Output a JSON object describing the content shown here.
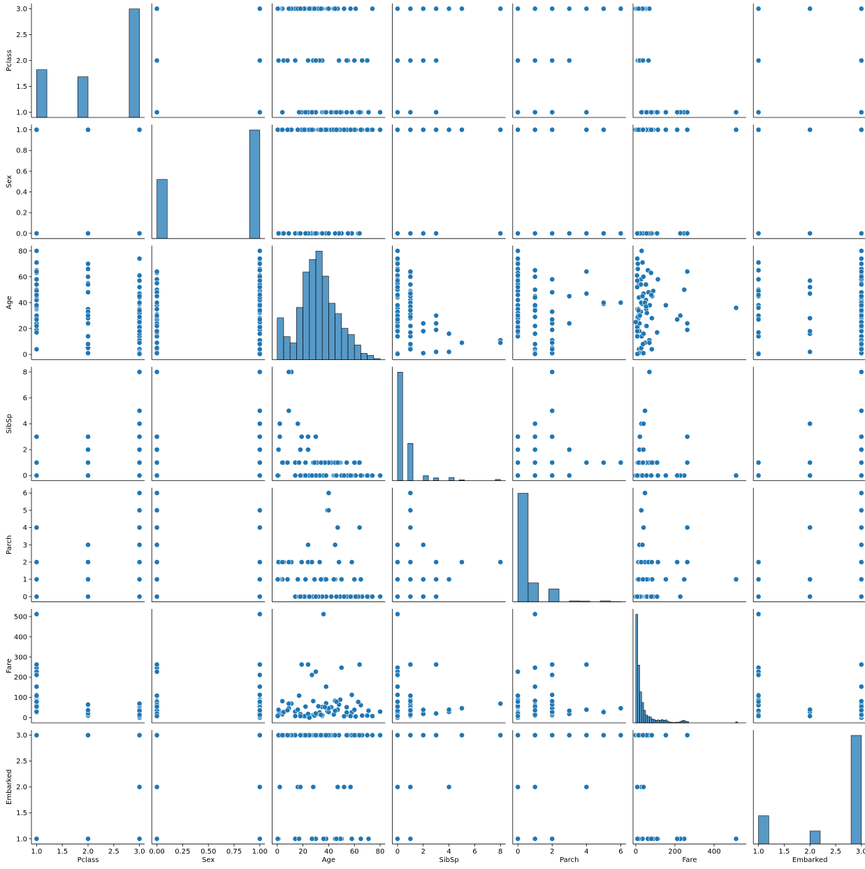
{
  "chart_data": {
    "type": "pairplot",
    "color": "#1f77b4",
    "variables": [
      {
        "name": "Pclass",
        "xlim": [
          0.9,
          3.1
        ],
        "ylim": [
          0.9,
          3.1
        ],
        "xticks": [
          {
            "value": 1,
            "label": "1.0"
          },
          {
            "value": 1.5,
            "label": "1.5"
          },
          {
            "value": 2,
            "label": "2.0"
          },
          {
            "value": 2.5,
            "label": "2.5"
          },
          {
            "value": 3,
            "label": "3.0"
          }
        ],
        "yticks": [
          {
            "value": 1,
            "label": "1.0"
          },
          {
            "value": 1.5,
            "label": "1.5"
          },
          {
            "value": 2,
            "label": "2.0"
          },
          {
            "value": 2.5,
            "label": "2.5"
          },
          {
            "value": 3,
            "label": "3.0"
          }
        ],
        "hist": {
          "bins": [
            1,
            1.2,
            1.4,
            1.6,
            1.8,
            2,
            2.2,
            2.4,
            2.6,
            2.8,
            3
          ],
          "counts": [
            216,
            0,
            0,
            0,
            184,
            0,
            0,
            0,
            0,
            491
          ]
        }
      },
      {
        "name": "Sex",
        "xlim": [
          -0.05,
          1.05
        ],
        "ylim": [
          -0.05,
          1.05
        ],
        "xticks": [
          {
            "value": 0,
            "label": "0.00"
          },
          {
            "value": 0.25,
            "label": "0.25"
          },
          {
            "value": 0.5,
            "label": "0.50"
          },
          {
            "value": 0.75,
            "label": "0.75"
          },
          {
            "value": 1,
            "label": "1.00"
          }
        ],
        "yticks": [
          {
            "value": 0,
            "label": "0.0"
          },
          0.2,
          0.4,
          0.6,
          0.8,
          {
            "value": 1,
            "label": "1.0"
          }
        ],
        "hist": {
          "bins": [
            0,
            0.1,
            0.2,
            0.3,
            0.4,
            0.5,
            0.6,
            0.7,
            0.8,
            0.9,
            1
          ],
          "counts": [
            314,
            0,
            0,
            0,
            0,
            0,
            0,
            0,
            0,
            577
          ]
        }
      },
      {
        "name": "Age",
        "xlim": [
          -4,
          84
        ],
        "ylim": [
          -4,
          84
        ],
        "xticks": [
          0,
          20,
          40,
          60,
          80
        ],
        "yticks": [
          0,
          20,
          40,
          60,
          80
        ],
        "hist": {
          "bins": [
            0,
            5,
            10,
            15,
            20,
            25,
            30,
            35,
            40,
            45,
            50,
            55,
            60,
            65,
            70,
            75,
            80
          ],
          "counts": [
            40,
            22,
            16,
            50,
            84,
            96,
            104,
            80,
            54,
            44,
            30,
            24,
            14,
            6,
            4,
            1
          ]
        }
      },
      {
        "name": "SibSp",
        "xlim": [
          -0.4,
          8.4
        ],
        "ylim": [
          -0.4,
          8.4
        ],
        "xticks": [
          0,
          2,
          4,
          6,
          8
        ],
        "yticks": [
          0,
          2,
          4,
          6,
          8
        ],
        "hist": {
          "bins": [
            0,
            0.4,
            0.8,
            1.2,
            1.6,
            2,
            2.4,
            2.8,
            3.2,
            3.6,
            4,
            4.4,
            4.8,
            5.2,
            5.6,
            6,
            6.4,
            6.8,
            7.2,
            7.6,
            8
          ],
          "counts": [
            608,
            0,
            209,
            0,
            0,
            28,
            0,
            16,
            0,
            0,
            18,
            0,
            5,
            0,
            0,
            0,
            0,
            0,
            0,
            7
          ]
        }
      },
      {
        "name": "Parch",
        "xlim": [
          -0.3,
          6.3
        ],
        "ylim": [
          -0.3,
          6.3
        ],
        "xticks": [
          0,
          2,
          4,
          6
        ],
        "yticks": [
          0,
          1,
          2,
          3,
          4,
          5,
          6
        ],
        "hist": {
          "bins": [
            0,
            0.6,
            1.2,
            1.8,
            2.4,
            3,
            3.6,
            4.2,
            4.8,
            5.4,
            6
          ],
          "counts": [
            678,
            118,
            0,
            80,
            0,
            5,
            4,
            0,
            5,
            1
          ]
        }
      },
      {
        "name": "Fare",
        "xlim": [
          -14,
          564
        ],
        "ylim": [
          -25.6,
          537.9
        ],
        "xticks": [
          0,
          200,
          400
        ],
        "yticks": [
          0,
          100,
          200,
          300,
          400,
          500
        ],
        "hist": {
          "bins": [
            0,
            10,
            20,
            30,
            40,
            50,
            60,
            70,
            80,
            90,
            100,
            110,
            120,
            130,
            140,
            150,
            160,
            170,
            180,
            190,
            200,
            210,
            220,
            230,
            240,
            250,
            260,
            270,
            280,
            290,
            300,
            310,
            320,
            330,
            340,
            350,
            360,
            370,
            380,
            390,
            400,
            410,
            420,
            430,
            440,
            450,
            460,
            470,
            480,
            490,
            500,
            510,
            520
          ],
          "counts": [
            336,
            179,
            96,
            63,
            39,
            24,
            20,
            18,
            12,
            10,
            8,
            9,
            8,
            10,
            8,
            9,
            5,
            2,
            2,
            1,
            2,
            2,
            3,
            6,
            8,
            5,
            4,
            0,
            0,
            0,
            0,
            0,
            0,
            0,
            0,
            0,
            0,
            0,
            0,
            0,
            0,
            0,
            0,
            0,
            0,
            0,
            0,
            0,
            0,
            0,
            0,
            3
          ]
        }
      },
      {
        "name": "Embarked",
        "xlim": [
          0.9,
          3.1
        ],
        "ylim": [
          0.9,
          3.1
        ],
        "xticks": [
          {
            "value": 1,
            "label": "1.0"
          },
          {
            "value": 1.5,
            "label": "1.5"
          },
          {
            "value": 2,
            "label": "2.0"
          },
          {
            "value": 2.5,
            "label": "2.5"
          },
          {
            "value": 3,
            "label": "3.0"
          }
        ],
        "yticks": [
          {
            "value": 1,
            "label": "1.0"
          },
          {
            "value": 1.5,
            "label": "1.5"
          },
          {
            "value": 2,
            "label": "2.0"
          },
          {
            "value": 2.5,
            "label": "2.5"
          },
          {
            "value": 3,
            "label": "3.0"
          }
        ],
        "hist": {
          "bins": [
            1,
            1.2,
            1.4,
            1.6,
            1.8,
            2,
            2.2,
            2.4,
            2.6,
            2.8,
            3
          ],
          "counts": [
            168,
            0,
            0,
            0,
            0,
            77,
            0,
            0,
            0,
            646
          ]
        }
      }
    ],
    "rows": [
      [
        3,
        1,
        22,
        1,
        0,
        7.25,
        3
      ],
      [
        1,
        0,
        38,
        1,
        0,
        71.3,
        1
      ],
      [
        3,
        0,
        26,
        0,
        0,
        7.9,
        3
      ],
      [
        1,
        0,
        35,
        1,
        0,
        53.1,
        3
      ],
      [
        3,
        1,
        35,
        0,
        0,
        8.05,
        3
      ],
      [
        3,
        1,
        28,
        0,
        0,
        8.5,
        2
      ],
      [
        1,
        1,
        54,
        0,
        0,
        51.9,
        3
      ],
      [
        3,
        1,
        2,
        3,
        1,
        21.1,
        3
      ],
      [
        3,
        0,
        27,
        0,
        2,
        11.1,
        3
      ],
      [
        2,
        0,
        14,
        1,
        0,
        30.1,
        1
      ],
      [
        3,
        0,
        4,
        1,
        1,
        16.7,
        3
      ],
      [
        1,
        0,
        58,
        0,
        0,
        26.6,
        3
      ],
      [
        3,
        1,
        20,
        0,
        0,
        8.05,
        3
      ],
      [
        3,
        1,
        39,
        1,
        5,
        31.3,
        3
      ],
      [
        3,
        0,
        14,
        0,
        0,
        7.85,
        3
      ],
      [
        2,
        0,
        55,
        0,
        0,
        16,
        3
      ],
      [
        3,
        1,
        2,
        4,
        1,
        29.1,
        2
      ],
      [
        2,
        1,
        35,
        0,
        0,
        13,
        3
      ],
      [
        3,
        0,
        31,
        1,
        0,
        18,
        3
      ],
      [
        1,
        1,
        19,
        3,
        2,
        263,
        3
      ],
      [
        2,
        1,
        66,
        0,
        0,
        10.5,
        3
      ],
      [
        1,
        1,
        28,
        1,
        0,
        82.2,
        1
      ],
      [
        1,
        1,
        42,
        1,
        0,
        52,
        3
      ],
      [
        3,
        1,
        21,
        0,
        0,
        8.05,
        3
      ],
      [
        3,
        0,
        18,
        2,
        0,
        18,
        3
      ],
      [
        3,
        0,
        40,
        1,
        5,
        27.9,
        3
      ],
      [
        1,
        0,
        45,
        1,
        1,
        83.5,
        1
      ],
      [
        3,
        1,
        9,
        5,
        2,
        46.9,
        3
      ],
      [
        1,
        1,
        65,
        0,
        1,
        61.98,
        1
      ],
      [
        2,
        1,
        28,
        0,
        0,
        13,
        3
      ],
      [
        1,
        0,
        50,
        0,
        1,
        247.5,
        1
      ],
      [
        3,
        1,
        32,
        0,
        0,
        56.5,
        3
      ],
      [
        1,
        1,
        36,
        0,
        1,
        512.3,
        1
      ],
      [
        3,
        1,
        16,
        4,
        1,
        39.7,
        2
      ],
      [
        1,
        0,
        24,
        3,
        2,
        263,
        3
      ],
      [
        3,
        1,
        11,
        8,
        2,
        69.55,
        3
      ],
      [
        3,
        0,
        9,
        8,
        2,
        69.55,
        3
      ],
      [
        3,
        0,
        40,
        1,
        6,
        46.9,
        3
      ],
      [
        3,
        1,
        44,
        0,
        1,
        16.1,
        3
      ],
      [
        1,
        1,
        71,
        0,
        0,
        34.65,
        1
      ],
      [
        3,
        1,
        74,
        0,
        0,
        7.78,
        3
      ],
      [
        1,
        1,
        80,
        0,
        0,
        30,
        3
      ],
      [
        2,
        1,
        70,
        0,
        0,
        10.5,
        3
      ],
      [
        1,
        0,
        63,
        1,
        0,
        77.9,
        3
      ],
      [
        2,
        0,
        24,
        2,
        3,
        18.75,
        3
      ],
      [
        3,
        0,
        1,
        0,
        2,
        15.7,
        1
      ],
      [
        2,
        1,
        1,
        2,
        1,
        39,
        3
      ],
      [
        3,
        1,
        0.4,
        0,
        1,
        8.5,
        1
      ],
      [
        1,
        1,
        49,
        1,
        0,
        89.1,
        1
      ],
      [
        2,
        1,
        33,
        0,
        2,
        26,
        3
      ],
      [
        3,
        1,
        61,
        0,
        0,
        6.2,
        3
      ],
      [
        1,
        0,
        30,
        0,
        0,
        227.5,
        1
      ],
      [
        2,
        0,
        48,
        1,
        2,
        65,
        3
      ],
      [
        3,
        1,
        25,
        0,
        0,
        0,
        3
      ],
      [
        1,
        1,
        37,
        1,
        1,
        52.5,
        3
      ],
      [
        2,
        0,
        5,
        1,
        2,
        27.75,
        3
      ],
      [
        3,
        1,
        47,
        1,
        4,
        39.7,
        2
      ],
      [
        1,
        0,
        64,
        1,
        4,
        263,
        3
      ],
      [
        3,
        0,
        29,
        1,
        1,
        10.5,
        3
      ],
      [
        1,
        1,
        58,
        0,
        2,
        113,
        1
      ],
      [
        2,
        1,
        54,
        1,
        0,
        26,
        3
      ],
      [
        3,
        0,
        45,
        0,
        3,
        34.4,
        3
      ],
      [
        1,
        0,
        17,
        1,
        0,
        108.9,
        1
      ],
      [
        2,
        0,
        30,
        3,
        0,
        21,
        3
      ],
      [
        1,
        1,
        4,
        1,
        2,
        81.9,
        3
      ],
      [
        3,
        1,
        52,
        0,
        0,
        7.2,
        2
      ],
      [
        1,
        1,
        38,
        0,
        1,
        153.5,
        3
      ],
      [
        3,
        0,
        18,
        0,
        0,
        7.75,
        2
      ],
      [
        2,
        1,
        60,
        1,
        1,
        39,
        3
      ],
      [
        1,
        0,
        22,
        0,
        1,
        55,
        3
      ],
      [
        3,
        1,
        57,
        0,
        0,
        7.75,
        2
      ],
      [
        1,
        1,
        46,
        0,
        0,
        79.2,
        1
      ],
      [
        3,
        1,
        34,
        1,
        1,
        14.4,
        3
      ],
      [
        2,
        1,
        8,
        1,
        1,
        36.75,
        3
      ],
      [
        1,
        1,
        27,
        0,
        2,
        211.5,
        1
      ]
    ]
  }
}
